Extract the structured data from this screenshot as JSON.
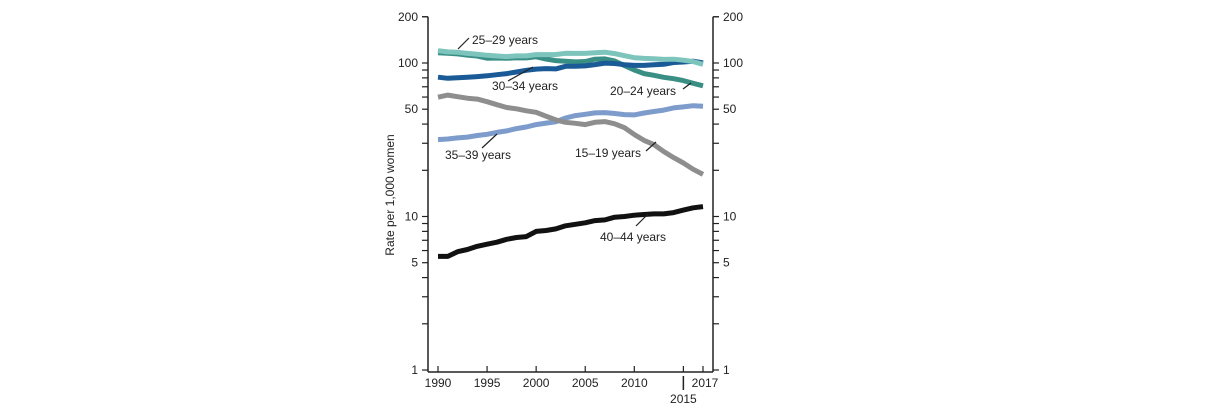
{
  "chart_data": {
    "type": "line",
    "ylabel": "Rate per 1,000 women",
    "xlabel": "",
    "yscale": "log",
    "ylim": [
      1,
      200
    ],
    "xlim": [
      1990,
      2017
    ],
    "y_ticks": [
      1,
      5,
      10,
      50,
      100,
      200
    ],
    "y_tick_labels": [
      "1",
      "5",
      "10",
      "50",
      "100",
      "200"
    ],
    "x_ticks": [
      1990,
      1995,
      2000,
      2005,
      2010,
      2015,
      2017
    ],
    "x_tick_labels": [
      "1990",
      "1995",
      "2000",
      "2005",
      "2010",
      "2015",
      "2017"
    ],
    "grid": false,
    "legend": "direct labels",
    "x": [
      1990,
      1991,
      1992,
      1993,
      1994,
      1995,
      1996,
      1997,
      1998,
      1999,
      2000,
      2001,
      2002,
      2003,
      2004,
      2005,
      2006,
      2007,
      2008,
      2009,
      2010,
      2011,
      2012,
      2013,
      2014,
      2015,
      2016,
      2017
    ],
    "series": [
      {
        "name": "15–19 years",
        "color": "#8e8e8e",
        "values": [
          59.9,
          61.8,
          60.3,
          59.0,
          58.2,
          56.0,
          53.5,
          51.3,
          50.3,
          48.8,
          47.7,
          45.0,
          42.6,
          41.1,
          40.5,
          39.7,
          41.1,
          41.5,
          40.2,
          37.9,
          34.2,
          31.3,
          29.4,
          26.5,
          24.2,
          22.3,
          20.3,
          18.8
        ]
      },
      {
        "name": "20–24 years",
        "color": "#3a8f85",
        "values": [
          116.5,
          115.7,
          114.6,
          112.6,
          111.1,
          107.5,
          107.8,
          107.3,
          108.2,
          107.9,
          109.7,
          106.2,
          103.6,
          102.6,
          101.7,
          102.2,
          105.9,
          106.3,
          103.0,
          96.2,
          90.0,
          85.3,
          83.1,
          80.7,
          79.0,
          76.8,
          73.8,
          71.0
        ]
      },
      {
        "name": "25–29 years",
        "color": "#7cc4bc",
        "values": [
          120.2,
          118.2,
          117.4,
          115.5,
          113.9,
          112.2,
          111.1,
          110.1,
          111.2,
          111.2,
          113.5,
          113.4,
          113.6,
          115.6,
          115.5,
          115.5,
          116.7,
          117.5,
          115.1,
          111.5,
          108.3,
          107.2,
          106.5,
          105.5,
          105.8,
          104.3,
          102.1,
          98.0
        ]
      },
      {
        "name": "30–34 years",
        "color": "#1a5a96",
        "values": [
          80.8,
          79.5,
          80.2,
          80.8,
          81.5,
          82.5,
          83.9,
          85.3,
          87.4,
          89.6,
          91.2,
          91.9,
          91.5,
          95.1,
          95.3,
          95.8,
          97.7,
          99.9,
          99.3,
          97.5,
          96.5,
          96.5,
          97.3,
          98.0,
          100.8,
          101.5,
          102.7,
          100.3
        ]
      },
      {
        "name": "35–39 years",
        "color": "#7d9ccc",
        "values": [
          31.7,
          32.0,
          32.5,
          32.9,
          33.7,
          34.3,
          35.3,
          36.1,
          37.4,
          38.3,
          39.7,
          40.6,
          41.4,
          43.8,
          45.4,
          46.3,
          47.3,
          47.5,
          46.9,
          46.1,
          45.9,
          47.2,
          48.3,
          49.3,
          51.0,
          51.8,
          52.7,
          52.3
        ]
      },
      {
        "name": "40–44 years",
        "color": "#111111",
        "values": [
          5.5,
          5.5,
          5.9,
          6.1,
          6.4,
          6.6,
          6.8,
          7.1,
          7.3,
          7.4,
          8.0,
          8.1,
          8.3,
          8.7,
          8.9,
          9.1,
          9.4,
          9.5,
          9.9,
          10.0,
          10.2,
          10.3,
          10.4,
          10.4,
          10.6,
          11.0,
          11.4,
          11.6
        ]
      }
    ]
  }
}
